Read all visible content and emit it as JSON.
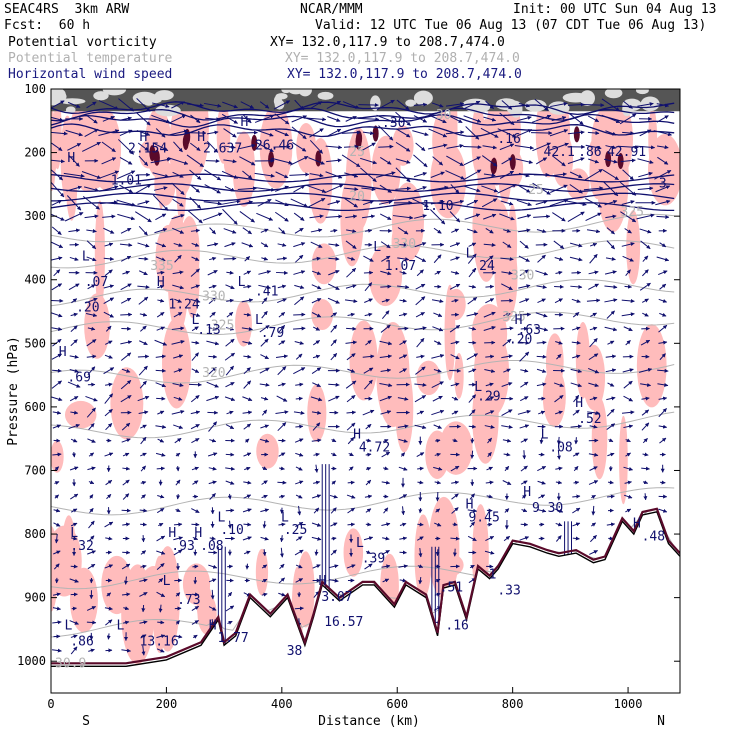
{
  "header": {
    "model": "SEAC4RS  3km ARW",
    "center": "NCAR/MMM",
    "init": "Init: 00 UTC Sun 04 Aug 13",
    "fcst": "Fcst:  60 h",
    "valid": "Valid: 12 UTC Tue 06 Aug 13 (07 CDT Tue 06 Aug 13)",
    "field1": "Potential vorticity",
    "field2": "Potential temperature",
    "field3": "Horizontal wind speed",
    "xy1": "XY= 132.0,117.9 to 208.7,474.0",
    "xy2": "XY= 132.0,117.9 to 208.7,474.0",
    "xy3": "XY= 132.0,117.9 to 208.7,474.0"
  },
  "colors": {
    "pv_fill": "#ffbcbc",
    "pv_dark": "#5a0a2a",
    "theta": "#b4b4b4",
    "wind": "#10106e",
    "terrain": "#000000"
  },
  "chart_data": {
    "type": "cross-section",
    "xlabel": "Distance (km)",
    "ylabel": "Pressure (hPa)",
    "xlim": [
      0,
      1090
    ],
    "ylim": [
      1050,
      100
    ],
    "x_ticks": [
      "0",
      "200",
      "400",
      "600",
      "800",
      "1000"
    ],
    "y_ticks": [
      "100",
      "200",
      "300",
      "400",
      "500",
      "600",
      "700",
      "800",
      "900",
      "1000"
    ],
    "x_end_labels": [
      "S",
      "N"
    ],
    "theta_labels": [
      {
        "x": 165,
        "p": 385,
        "t": "335"
      },
      {
        "x": 255,
        "p": 433,
        "t": "330"
      },
      {
        "x": 270,
        "p": 478,
        "t": "325"
      },
      {
        "x": 255,
        "p": 553,
        "t": "320"
      },
      {
        "x": 510,
        "p": 205,
        "t": "25"
      },
      {
        "x": 510,
        "p": 275,
        "t": "20"
      },
      {
        "x": 585,
        "p": 350,
        "t": "330"
      },
      {
        "x": 790,
        "p": 400,
        "t": "330"
      },
      {
        "x": 775,
        "p": 465,
        "t": "325"
      },
      {
        "x": 660,
        "p": 147,
        "t": "30"
      },
      {
        "x": 820,
        "p": 265,
        "t": "25"
      },
      {
        "x": 980,
        "p": 300,
        "t": "325"
      },
      {
        "x": 0,
        "p": 1010,
        "t": "30.9"
      }
    ],
    "pv_labels": [
      {
        "x": 25,
        "p": 215,
        "t": "H"
      },
      {
        "x": 100,
        "p": 250,
        "t": "1.01"
      },
      {
        "x": 50,
        "p": 370,
        "t": "L"
      },
      {
        "x": 55,
        "p": 410,
        "t": ".07"
      },
      {
        "x": 40,
        "p": 450,
        "t": ".20"
      },
      {
        "x": 10,
        "p": 520,
        "t": "H"
      },
      {
        "x": 25,
        "p": 560,
        "t": ".69"
      },
      {
        "x": 180,
        "p": 410,
        "t": "H"
      },
      {
        "x": 200,
        "p": 445,
        "t": "1.24"
      },
      {
        "x": 240,
        "p": 470,
        "t": "L"
      },
      {
        "x": 250,
        "p": 485,
        "t": ".13"
      },
      {
        "x": 320,
        "p": 410,
        "t": "L"
      },
      {
        "x": 350,
        "p": 425,
        "t": ".41"
      },
      {
        "x": 350,
        "p": 470,
        "t": "L"
      },
      {
        "x": 360,
        "p": 490,
        "t": ".79"
      },
      {
        "x": 555,
        "p": 355,
        "t": "L"
      },
      {
        "x": 575,
        "p": 385,
        "t": "1.07"
      },
      {
        "x": 715,
        "p": 365,
        "t": "L"
      },
      {
        "x": 725,
        "p": 385,
        "t": ".24"
      },
      {
        "x": 640,
        "p": 290,
        "t": "1.10"
      },
      {
        "x": 800,
        "p": 470,
        "t": "H"
      },
      {
        "x": 805,
        "p": 485,
        "t": ".63"
      },
      {
        "x": 790,
        "p": 500,
        "t": ".20"
      },
      {
        "x": 730,
        "p": 575,
        "t": "L"
      },
      {
        "x": 735,
        "p": 590,
        "t": ".29"
      },
      {
        "x": 905,
        "p": 600,
        "t": "H"
      },
      {
        "x": 910,
        "p": 625,
        "t": ".52"
      },
      {
        "x": 845,
        "p": 650,
        "t": "L"
      },
      {
        "x": 860,
        "p": 670,
        "t": ".08"
      },
      {
        "x": 520,
        "p": 650,
        "t": "H"
      },
      {
        "x": 530,
        "p": 670,
        "t": "4.72"
      },
      {
        "x": 715,
        "p": 760,
        "t": "H"
      },
      {
        "x": 720,
        "p": 780,
        "t": "9.45"
      },
      {
        "x": 815,
        "p": 740,
        "t": "H"
      },
      {
        "x": 830,
        "p": 765,
        "t": "9.30"
      },
      {
        "x": 30,
        "p": 805,
        "t": "L"
      },
      {
        "x": 30,
        "p": 825,
        "t": ".32"
      },
      {
        "x": 200,
        "p": 805,
        "t": "H"
      },
      {
        "x": 205,
        "p": 825,
        "t": ".93"
      },
      {
        "x": 245,
        "p": 805,
        "t": "H"
      },
      {
        "x": 255,
        "p": 825,
        "t": ".08"
      },
      {
        "x": 285,
        "p": 780,
        "t": "L"
      },
      {
        "x": 290,
        "p": 800,
        "t": ".10"
      },
      {
        "x": 395,
        "p": 780,
        "t": "L"
      },
      {
        "x": 400,
        "p": 800,
        "t": ".25"
      },
      {
        "x": 525,
        "p": 820,
        "t": "L"
      },
      {
        "x": 535,
        "p": 845,
        "t": ".39"
      },
      {
        "x": 190,
        "p": 880,
        "t": "L"
      },
      {
        "x": 215,
        "p": 910,
        "t": ".73"
      },
      {
        "x": 20,
        "p": 950,
        "t": "L"
      },
      {
        "x": 30,
        "p": 975,
        "t": ".86"
      },
      {
        "x": 110,
        "p": 950,
        "t": "L"
      },
      {
        "x": 150,
        "p": 975,
        "t": "13.16"
      },
      {
        "x": 270,
        "p": 950,
        "t": "H"
      },
      {
        "x": 285,
        "p": 970,
        "t": "1.77"
      },
      {
        "x": 460,
        "p": 880,
        "t": "H"
      },
      {
        "x": 465,
        "p": 905,
        "t": "3.07"
      },
      {
        "x": 470,
        "p": 945,
        "t": "16.57"
      },
      {
        "x": 405,
        "p": 990,
        "t": "38"
      },
      {
        "x": 680,
        "p": 950,
        "t": ".16"
      },
      {
        "x": 670,
        "p": 890,
        "t": ".51"
      },
      {
        "x": 755,
        "p": 870,
        "t": "1"
      },
      {
        "x": 770,
        "p": 895,
        "t": ".33"
      },
      {
        "x": 1005,
        "p": 790,
        "t": "H"
      },
      {
        "x": 1020,
        "p": 810,
        "t": ".48"
      },
      {
        "x": 150,
        "p": 182,
        "t": "H"
      },
      {
        "x": 130,
        "p": 200,
        "t": "2.154"
      },
      {
        "x": 250,
        "p": 182,
        "t": "H"
      },
      {
        "x": 260,
        "p": 200,
        "t": "2.637"
      },
      {
        "x": 325,
        "p": 158,
        "t": "H"
      },
      {
        "x": 350,
        "p": 195,
        "t": "26.46"
      },
      {
        "x": 570,
        "p": 160,
        "t": ".30"
      },
      {
        "x": 770,
        "p": 185,
        "t": ".16"
      },
      {
        "x": 850,
        "p": 205,
        "t": "42.1"
      },
      {
        "x": 910,
        "p": 205,
        "t": ".86"
      },
      {
        "x": 960,
        "p": 205,
        "t": "42.91"
      },
      {
        "x": 1050,
        "p": 255,
        "t": "3"
      }
    ]
  }
}
